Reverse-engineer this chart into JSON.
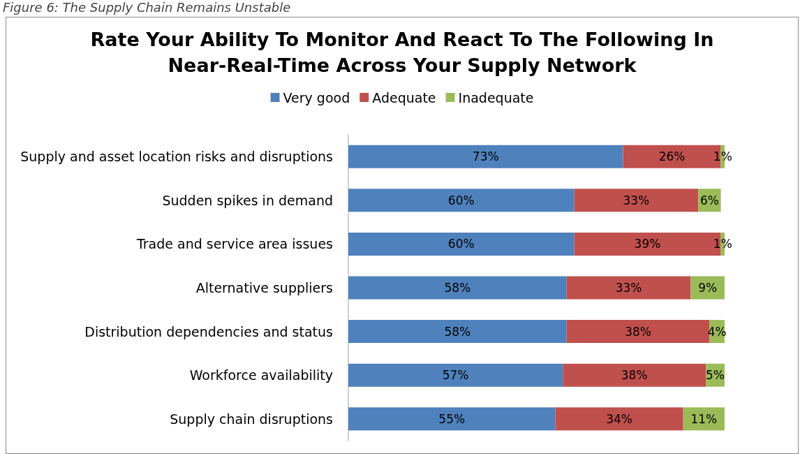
{
  "chart_data": {
    "type": "bar",
    "orientation": "horizontal",
    "stacked": true,
    "title": "Rate Your Ability To Monitor And React To The Following In\nNear-Real-Time Across Your Supply Network",
    "annotations": [
      "Figure 6: The Supply Chain Remains Unstable"
    ],
    "categories": [
      "Supply and asset location risks and disruptions",
      "Sudden spikes in demand",
      "Trade and service area issues",
      "Alternative suppliers",
      "Distribution dependencies and status",
      "Workforce availability",
      "Supply chain disruptions"
    ],
    "series": [
      {
        "name": "Very good",
        "color": "#4f81bd",
        "values": [
          73,
          60,
          60,
          58,
          58,
          57,
          55
        ],
        "value_labels": [
          "73%",
          "60%",
          "60%",
          "58%",
          "58%",
          "57%",
          "55%"
        ]
      },
      {
        "name": "Adequate",
        "color": "#c0504d",
        "values": [
          26,
          33,
          39,
          33,
          38,
          38,
          34
        ],
        "value_labels": [
          "26%",
          "33%",
          "39%",
          "33%",
          "38%",
          "38%",
          "34%"
        ]
      },
      {
        "name": "Inadequate",
        "color": "#9bbb59",
        "values": [
          1,
          6,
          1,
          9,
          4,
          5,
          11
        ],
        "value_labels": [
          "1%",
          "6%",
          "1%",
          "9%",
          "4%",
          "5%",
          "11%"
        ]
      }
    ],
    "legend": "top"
  }
}
